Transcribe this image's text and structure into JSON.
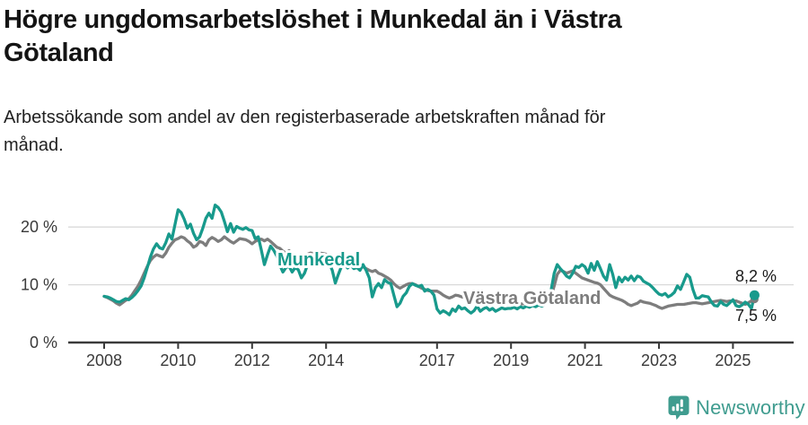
{
  "title_lines": [
    "Högre ungdomsarbetslöshet i Munkedal än i Västra",
    "Götaland"
  ],
  "subtitle_lines": [
    "Arbetssökande som andel av den registerbaserade arbetskraften månad för",
    "månad."
  ],
  "colors": {
    "munkedal": "#189A8C",
    "vastra_gotaland": "#7D7D7D",
    "title": "#141414",
    "axis": "#3A3A3A",
    "gridline": "#D9D9D9",
    "end_label": "#1A1A1A",
    "brand": "#3F9C8F"
  },
  "footer": {
    "brand_name": "Newsworthy",
    "logo_icon": "speech-bubble-bar-chart-icon"
  },
  "chart_data": {
    "type": "line",
    "frequency": "monthly",
    "x_start": "2008-01",
    "x_end": "2025-08",
    "ylim": [
      0,
      25
    ],
    "grid": "horizontal",
    "yticks": [
      {
        "value": 0,
        "label": "0 %"
      },
      {
        "value": 10,
        "label": "10 %"
      },
      {
        "value": 20,
        "label": "20 %"
      }
    ],
    "xticks": [
      {
        "year": 2008,
        "label": "2008"
      },
      {
        "year": 2010,
        "label": "2010"
      },
      {
        "year": 2012,
        "label": "2012"
      },
      {
        "year": 2014,
        "label": "2014"
      },
      {
        "year": 2017,
        "label": "2017"
      },
      {
        "year": 2019,
        "label": "2019"
      },
      {
        "year": 2021,
        "label": "2021"
      },
      {
        "year": 2023,
        "label": "2023"
      },
      {
        "year": 2025,
        "label": "2025"
      }
    ],
    "series": [
      {
        "name": "Västra Götaland",
        "color": "#7D7D7D",
        "inline_label": "Västra Götaland",
        "end_label": "7,5 %",
        "end_value": 7.5,
        "values": [
          8.0,
          7.8,
          7.5,
          7.2,
          6.8,
          6.5,
          6.9,
          7.3,
          7.6,
          8.2,
          9.0,
          9.8,
          10.8,
          12.0,
          13.2,
          14.2,
          14.8,
          15.2,
          15.0,
          14.8,
          15.5,
          16.5,
          17.2,
          17.8,
          18.0,
          18.3,
          18.1,
          17.6,
          17.2,
          16.5,
          16.8,
          17.5,
          17.3,
          16.8,
          17.8,
          18.2,
          17.9,
          17.5,
          17.8,
          18.3,
          17.9,
          17.5,
          17.2,
          17.6,
          18.0,
          17.9,
          17.8,
          17.5,
          17.1,
          17.5,
          17.8,
          17.9,
          17.6,
          17.9,
          17.5,
          17.0,
          16.5,
          16.3,
          15.8,
          15.5,
          15.9,
          15.4,
          14.8,
          14.4,
          14.6,
          15.0,
          15.3,
          15.5,
          15.4,
          15.6,
          15.5,
          15.4,
          15.3,
          15.0,
          14.8,
          14.9,
          14.6,
          14.3,
          14.4,
          14.1,
          13.8,
          13.5,
          13.3,
          13.1,
          13.1,
          12.8,
          12.5,
          12.3,
          12.5,
          12.0,
          11.8,
          11.5,
          11.2,
          10.8,
          10.2,
          9.7,
          9.4,
          9.7,
          10.0,
          10.2,
          10.2,
          10.0,
          9.7,
          9.4,
          9.2,
          9.0,
          8.9,
          8.9,
          8.9,
          8.6,
          8.2,
          7.9,
          7.7,
          7.9,
          8.2,
          8.1,
          7.9,
          7.8,
          7.7,
          7.6,
          7.5,
          7.4,
          7.3,
          7.2,
          7.1,
          7.0,
          7.0,
          6.9,
          6.9,
          6.8,
          6.8,
          6.7,
          6.7,
          6.6,
          6.6,
          6.7,
          6.7,
          6.8,
          6.8,
          6.9,
          7.0,
          7.0,
          7.1,
          7.2,
          7.4,
          8.0,
          9.8,
          11.8,
          12.5,
          12.3,
          12.0,
          12.2,
          12.4,
          12.0,
          11.6,
          11.2,
          11.0,
          10.8,
          10.6,
          10.4,
          10.3,
          10.0,
          9.4,
          8.8,
          8.2,
          7.9,
          7.7,
          7.5,
          7.3,
          7.0,
          6.6,
          6.4,
          6.6,
          6.8,
          7.2,
          7.0,
          6.9,
          6.8,
          6.6,
          6.4,
          6.1,
          5.9,
          6.1,
          6.3,
          6.4,
          6.5,
          6.6,
          6.6,
          6.6,
          6.7,
          6.8,
          6.9,
          6.9,
          6.8,
          6.7,
          6.8,
          6.9,
          7.0,
          7.1,
          7.2,
          7.3,
          7.2,
          7.1,
          7.2,
          7.2,
          7.2,
          7.0,
          6.8,
          6.6,
          6.9,
          7.2,
          7.5
        ]
      },
      {
        "name": "Munkedal",
        "color": "#189A8C",
        "inline_label": "Munkedal",
        "end_label": "8,2 %",
        "end_value": 8.2,
        "values": [
          8.0,
          7.9,
          7.7,
          7.4,
          7.1,
          7.0,
          7.3,
          7.6,
          7.4,
          7.8,
          8.3,
          9.0,
          9.8,
          11.2,
          13.0,
          14.8,
          16.2,
          17.1,
          16.4,
          16.2,
          17.3,
          18.8,
          17.9,
          20.5,
          23.0,
          22.5,
          21.3,
          19.8,
          20.5,
          18.9,
          17.8,
          18.3,
          19.8,
          21.5,
          22.4,
          21.5,
          23.8,
          23.4,
          22.6,
          21.0,
          19.2,
          20.6,
          19.1,
          20.1,
          19.8,
          19.6,
          19.9,
          19.5,
          19.4,
          18.0,
          18.3,
          16.0,
          13.5,
          15.2,
          16.7,
          16.0,
          15.0,
          13.4,
          12.2,
          13.0,
          13.2,
          12.2,
          13.0,
          12.6,
          11.2,
          12.0,
          13.5,
          14.3,
          15.0,
          14.4,
          15.2,
          14.8,
          14.8,
          13.8,
          12.5,
          10.3,
          11.8,
          13.2,
          13.5,
          12.9,
          13.4,
          12.8,
          13.0,
          12.5,
          13.5,
          12.5,
          11.2,
          7.9,
          9.5,
          10.2,
          9.5,
          10.9,
          10.4,
          10.2,
          8.2,
          6.2,
          6.8,
          8.0,
          8.6,
          9.7,
          10.2,
          9.9,
          9.7,
          9.9,
          8.9,
          9.2,
          8.9,
          8.2,
          5.8,
          5.1,
          5.5,
          5.2,
          4.8,
          5.8,
          5.4,
          6.3,
          5.8,
          6.0,
          5.5,
          5.1,
          5.5,
          6.3,
          5.4,
          5.8,
          6.1,
          5.6,
          5.9,
          5.4,
          5.7,
          6.0,
          5.8,
          5.9,
          5.9,
          6.1,
          5.8,
          6.2,
          6.0,
          6.3,
          6.1,
          6.4,
          6.2,
          6.5,
          6.3,
          6.6,
          7.2,
          9.0,
          12.0,
          13.5,
          12.8,
          12.2,
          11.5,
          11.2,
          12.0,
          13.2,
          13.0,
          13.5,
          13.1,
          12.0,
          13.7,
          12.5,
          14.0,
          12.8,
          11.5,
          10.8,
          13.5,
          11.8,
          9.5,
          11.3,
          10.5,
          11.3,
          10.8,
          11.5,
          10.7,
          11.5,
          11.3,
          10.6,
          10.3,
          10.0,
          9.5,
          8.9,
          8.4,
          8.2,
          8.5,
          7.9,
          8.2,
          8.7,
          9.8,
          9.2,
          10.5,
          11.8,
          11.3,
          9.2,
          7.7,
          7.7,
          8.1,
          8.0,
          7.9,
          7.0,
          6.4,
          6.3,
          7.1,
          6.6,
          6.4,
          6.9,
          7.4,
          6.4,
          6.2,
          6.5,
          7.0,
          6.6,
          5.9,
          8.2
        ]
      }
    ]
  }
}
